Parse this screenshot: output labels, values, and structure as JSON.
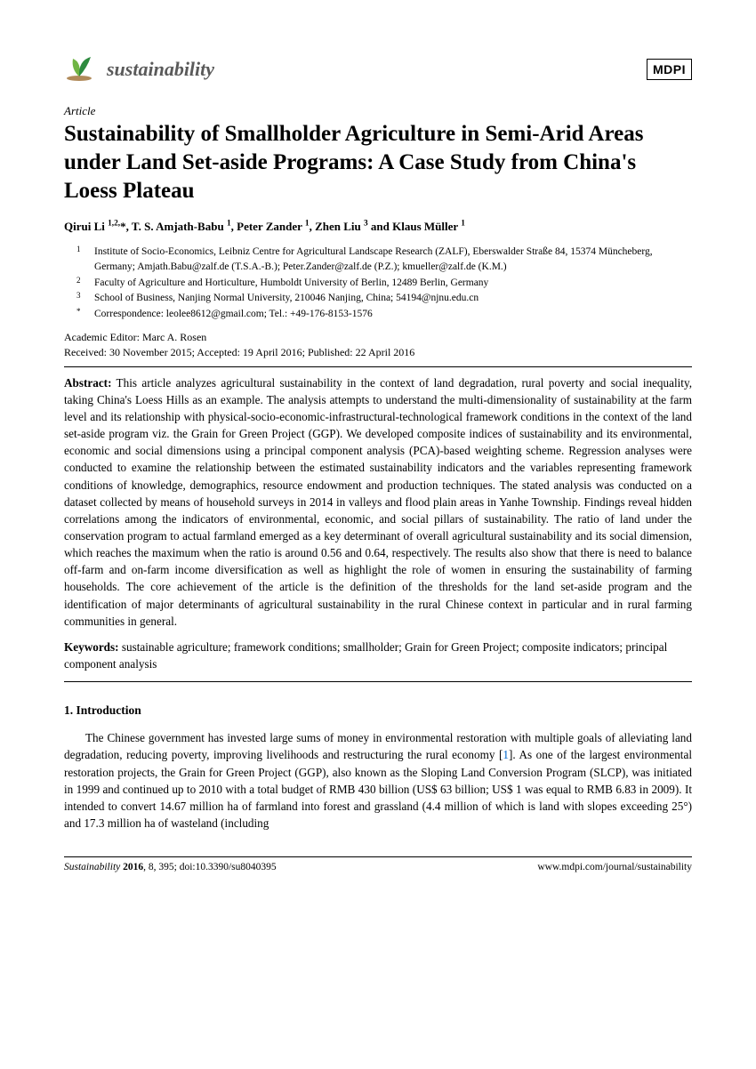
{
  "header": {
    "journal": "sustainability",
    "publisher": "MDPI",
    "logo_colors": {
      "leaf1": "#6fb544",
      "leaf2": "#2d8a3e",
      "soil": "#b08a5a"
    }
  },
  "article": {
    "type": "Article",
    "title": "Sustainability of Smallholder Agriculture in Semi-Arid Areas under Land Set-aside Programs: A Case Study from China's Loess Plateau",
    "authors_html": "Qirui Li <sup>1,2,</sup>*, T. S. Amjath-Babu <sup>1</sup>, Peter Zander <sup>1</sup>, Zhen Liu <sup>3</sup> and Klaus Müller <sup>1</sup>",
    "affiliations": [
      {
        "num": "1",
        "text": "Institute of Socio-Economics, Leibniz Centre for Agricultural Landscape Research (ZALF), Eberswalder Straße 84, 15374 Müncheberg, Germany; Amjath.Babu@zalf.de (T.S.A.-B.); Peter.Zander@zalf.de (P.Z.); kmueller@zalf.de (K.M.)"
      },
      {
        "num": "2",
        "text": "Faculty of Agriculture and Horticulture, Humboldt University of Berlin, 12489 Berlin, Germany"
      },
      {
        "num": "3",
        "text": "School of Business, Nanjing Normal University, 210046 Nanjing, China; 54194@njnu.edu.cn"
      },
      {
        "num": "*",
        "text": "Correspondence: leolee8612@gmail.com; Tel.: +49-176-8153-1576"
      }
    ],
    "editor": "Academic Editor: Marc A. Rosen",
    "dates": "Received: 30 November 2015; Accepted: 19 April 2016; Published: 22 April 2016",
    "abstract_label": "Abstract:",
    "abstract": " This article analyzes agricultural sustainability in the context of land degradation, rural poverty and social inequality, taking China's Loess Hills as an example. The analysis attempts to understand the multi-dimensionality of sustainability at the farm level and its relationship with physical-socio-economic-infrastructural-technological framework conditions in the context of the land set-aside program viz. the Grain for Green Project (GGP). We developed composite indices of sustainability and its environmental, economic and social dimensions using a principal component analysis (PCA)-based weighting scheme. Regression analyses were conducted to examine the relationship between the estimated sustainability indicators and the variables representing framework conditions of knowledge, demographics, resource endowment and production techniques. The stated analysis was conducted on a dataset collected by means of household surveys in 2014 in valleys and flood plain areas in Yanhe Township. Findings reveal hidden correlations among the indicators of environmental, economic, and social pillars of sustainability. The ratio of land under the conservation program to actual farmland emerged as a key determinant of overall agricultural sustainability and its social dimension, which reaches the maximum when the ratio is around 0.56 and 0.64, respectively. The results also show that there is need to balance off-farm and on-farm income diversification as well as highlight the role of women in ensuring the sustainability of farming households. The core achievement of the article is the definition of the thresholds for the land set-aside program and the identification of major determinants of agricultural sustainability in the rural Chinese context in particular and in rural farming communities in general.",
    "keywords_label": "Keywords:",
    "keywords": " sustainable agriculture; framework conditions; smallholder; Grain for Green Project; composite indicators; principal component analysis"
  },
  "sections": {
    "intro_heading": "1.  Introduction",
    "intro_body_pre": "The Chinese government has invested large sums of money in environmental restoration with multiple goals of alleviating land degradation, reducing poverty, improving livelihoods and restructuring the rural economy [",
    "intro_cite": "1",
    "intro_body_post": "]. As one of the largest environmental restoration projects, the Grain for Green Project (GGP), also known as the Sloping Land Conversion Program (SLCP), was initiated in 1999 and continued up to 2010 with a total budget of RMB 430 billion (US$ 63 billion; US$ 1 was equal to RMB 6.83 in 2009). It intended to convert 14.67 million ha of farmland into forest and grassland (4.4 million of which is land with slopes exceeding 25°) and 17.3 million ha of wasteland (including"
  },
  "footer": {
    "left_italic": "Sustainability ",
    "left_bold": "2016",
    "left_rest": ", 8, 395; doi:10.3390/su8040395",
    "right": "www.mdpi.com/journal/sustainability"
  }
}
